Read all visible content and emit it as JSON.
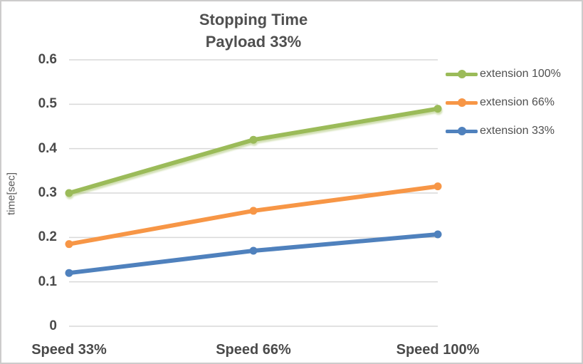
{
  "chart_data": {
    "type": "line",
    "title_line1": "Stopping Time",
    "title_line2": "Payload 33%",
    "ylabel": "time[sec]",
    "categories": [
      "Speed 33%",
      "Speed 66%",
      "Speed 100%"
    ],
    "series": [
      {
        "name": "extension 100%",
        "color": "#9BBB59",
        "values": [
          0.3,
          0.42,
          0.49
        ]
      },
      {
        "name": "extension 66%",
        "color": "#F79646",
        "values": [
          0.185,
          0.26,
          0.315
        ]
      },
      {
        "name": "extension 33%",
        "color": "#4F81BD",
        "values": [
          0.12,
          0.17,
          0.207
        ]
      }
    ],
    "ylim": [
      0,
      0.6
    ],
    "ytick_step": 0.1,
    "yticks": [
      "0.6",
      "0.5",
      "0.4",
      "0.3",
      "0.2",
      "0.1",
      "0"
    ],
    "grid": true,
    "legend_position": "right",
    "gridline_color": "#D9D9D9",
    "text_color": "#4f4f4f",
    "background_color": "#ffffff"
  }
}
